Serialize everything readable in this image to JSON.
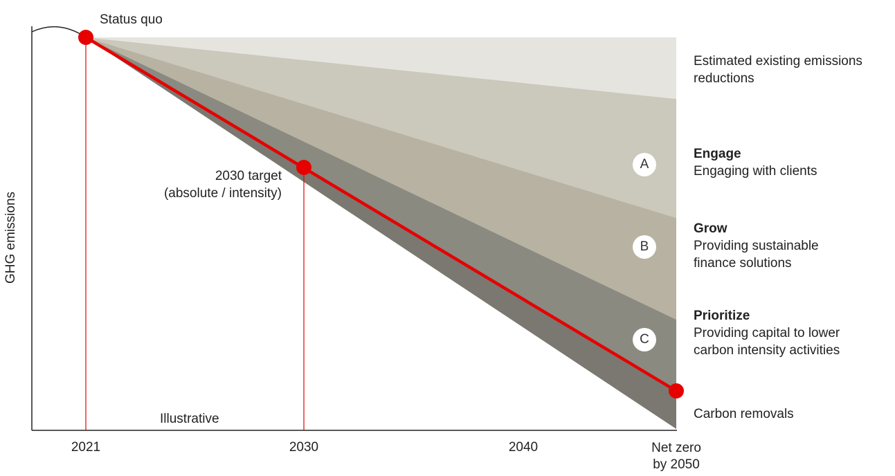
{
  "chart_data": {
    "type": "area",
    "ylabel": "GHG emissions",
    "x_ticks": [
      "2021",
      "2030",
      "2040",
      "Net zero\nby 2050"
    ],
    "annotations": {
      "status_quo": "Status quo",
      "target_2030_line1": "2030 target",
      "target_2030_line2": "(absolute / intensity)",
      "illustrative": "Illustrative"
    },
    "bands": [
      {
        "key": "existing",
        "title": "",
        "desc_lines": [
          "Estimated existing emissions",
          "reductions"
        ],
        "badge": "",
        "color": "#e6e4df"
      },
      {
        "key": "engage",
        "title": "Engage",
        "desc_lines": [
          "Engaging with clients"
        ],
        "badge": "A",
        "color": "#cbc8bc"
      },
      {
        "key": "grow",
        "title": "Grow",
        "desc_lines": [
          "Providing sustainable",
          "finance solutions"
        ],
        "badge": "B",
        "color": "#b8b2a2"
      },
      {
        "key": "prioritize",
        "title": "Prioritize",
        "desc_lines": [
          "Providing capital to lower",
          "carbon intensity activities"
        ],
        "badge": "C",
        "color": "#8a8a80"
      },
      {
        "key": "removals",
        "title": "",
        "desc_lines": [
          "Carbon removals"
        ],
        "badge": "",
        "color": "#7a7870"
      }
    ],
    "pathway": {
      "x": [
        "2021",
        "2030",
        "2050"
      ],
      "color": "#e60000",
      "points": [
        "Status quo",
        "2030 target",
        "Net zero by 2050"
      ]
    }
  }
}
